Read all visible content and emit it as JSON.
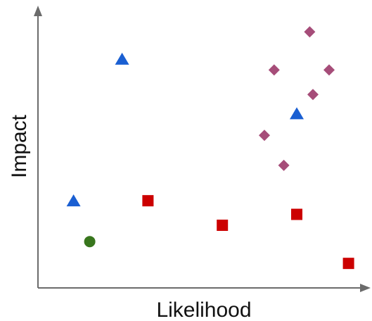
{
  "chart_data": {
    "type": "scatter",
    "title": "",
    "xlabel": "Likelihood",
    "ylabel": "Impact",
    "xlim": [
      0,
      100
    ],
    "ylim": [
      0,
      100
    ],
    "grid": false,
    "legend": "none",
    "series": [
      {
        "marker": "triangle",
        "color": "#1a5fd2",
        "points": [
          {
            "x": 11,
            "y": 32
          },
          {
            "x": 26,
            "y": 84
          },
          {
            "x": 80,
            "y": 64
          }
        ]
      },
      {
        "marker": "square",
        "color": "#cc0000",
        "points": [
          {
            "x": 34,
            "y": 32
          },
          {
            "x": 57,
            "y": 23
          },
          {
            "x": 80,
            "y": 27
          },
          {
            "x": 96,
            "y": 9
          }
        ]
      },
      {
        "marker": "diamond",
        "color": "#a64d79",
        "points": [
          {
            "x": 84,
            "y": 94
          },
          {
            "x": 73,
            "y": 80
          },
          {
            "x": 90,
            "y": 80
          },
          {
            "x": 85,
            "y": 71
          },
          {
            "x": 70,
            "y": 56
          },
          {
            "x": 76,
            "y": 45
          }
        ]
      },
      {
        "marker": "circle",
        "color": "#38761d",
        "points": [
          {
            "x": 16,
            "y": 17
          }
        ]
      }
    ]
  }
}
